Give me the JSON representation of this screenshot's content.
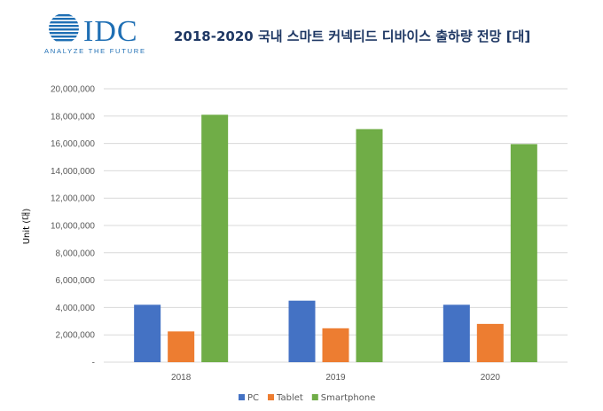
{
  "logo": {
    "name": "IDC",
    "tagline": "ANALYZE THE FUTURE",
    "color": "#1f6fb4"
  },
  "chart_data": {
    "type": "bar",
    "title": "2018-2020 국내 스마트 커넥티드 디바이스 출하량 전망 [대]",
    "ylabel": "Unit (대)",
    "xlabel": "",
    "categories": [
      "2018",
      "2019",
      "2020"
    ],
    "series": [
      {
        "name": "PC",
        "color": "#4472c4",
        "values": [
          4200000,
          4500000,
          4200000
        ]
      },
      {
        "name": "Tablet",
        "color": "#ed7d31",
        "values": [
          2250000,
          2480000,
          2800000
        ]
      },
      {
        "name": "Smartphone",
        "color": "#70ad47",
        "values": [
          18100000,
          17050000,
          15950000
        ]
      }
    ],
    "ylim": [
      0,
      20000000
    ],
    "yticks": [
      0,
      2000000,
      4000000,
      6000000,
      8000000,
      10000000,
      12000000,
      14000000,
      16000000,
      18000000,
      20000000
    ],
    "ytick_labels": [
      "-",
      "2,000,000",
      "4,000,000",
      "6,000,000",
      "8,000,000",
      "10,000,000",
      "12,000,000",
      "14,000,000",
      "16,000,000",
      "18,000,000",
      "20,000,000"
    ],
    "grid": true,
    "legend": "bottom",
    "grid_color": "#d9d9d9"
  }
}
